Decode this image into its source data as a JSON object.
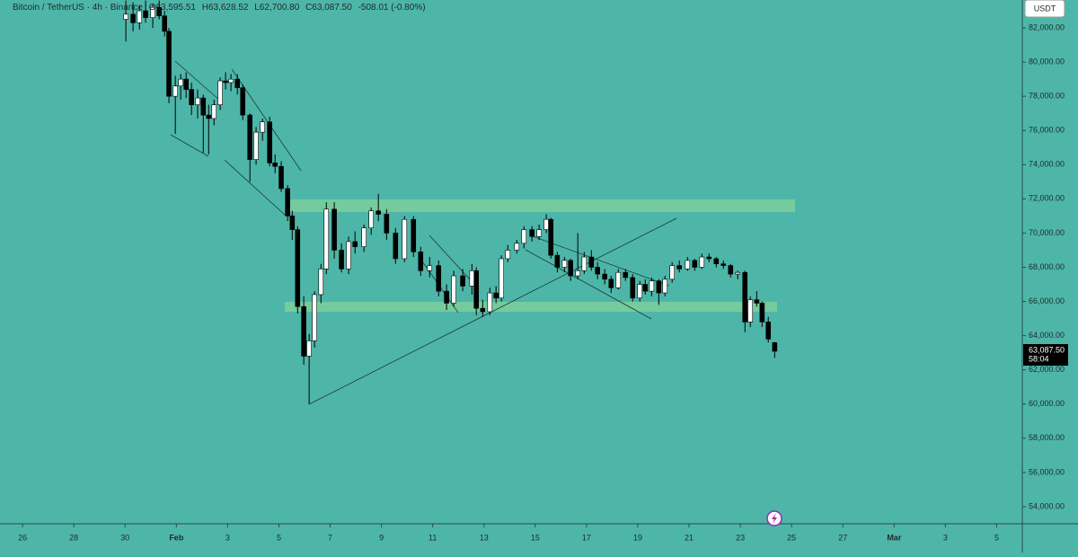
{
  "chart_data": {
    "type": "candlestick",
    "title": "Bitcoin / TetherUS",
    "interval": "4h",
    "exchange": "Binance",
    "ohlc_labels": [
      "O63,595.51",
      "H63,628.52",
      "L62,700.80",
      "C63,087.50",
      "-508.01 (-0.80%)"
    ],
    "currency": "USDT",
    "last_price": {
      "value": 63087.5,
      "label": "63,087.50"
    },
    "countdown": "58:04",
    "up_color": "#ffffff",
    "down_color": "#000000",
    "xlim": [
      -0.88,
      39.0
    ],
    "ylim": [
      53000,
      83630
    ],
    "xticks": [
      {
        "value": 0,
        "label": "26"
      },
      {
        "value": 2,
        "label": "28"
      },
      {
        "value": 4,
        "label": "30"
      },
      {
        "value": 6,
        "label": "Feb"
      },
      {
        "value": 8,
        "label": "3"
      },
      {
        "value": 10,
        "label": "5"
      },
      {
        "value": 12,
        "label": "7"
      },
      {
        "value": 14,
        "label": "9"
      },
      {
        "value": 16,
        "label": "11"
      },
      {
        "value": 18,
        "label": "13"
      },
      {
        "value": 20,
        "label": "15"
      },
      {
        "value": 22,
        "label": "17"
      },
      {
        "value": 24,
        "label": "19"
      },
      {
        "value": 26,
        "label": "21"
      },
      {
        "value": 28,
        "label": "23"
      },
      {
        "value": 30,
        "label": "25"
      },
      {
        "value": 32,
        "label": "27"
      },
      {
        "value": 34,
        "label": "Mar"
      },
      {
        "value": 36,
        "label": "3"
      },
      {
        "value": 38,
        "label": "5"
      }
    ],
    "yticks": [
      {
        "value": 54000,
        "label": "54,000.00"
      },
      {
        "value": 56000,
        "label": "56,000.00"
      },
      {
        "value": 58000,
        "label": "58,000.00"
      },
      {
        "value": 60000,
        "label": "60,000.00"
      },
      {
        "value": 62000,
        "label": "62,000.00"
      },
      {
        "value": 64000,
        "label": "64,000.00"
      },
      {
        "value": 66000,
        "label": "66,000.00"
      },
      {
        "value": 68000,
        "label": "68,000.00"
      },
      {
        "value": 70000,
        "label": "70,000.00"
      },
      {
        "value": 72000,
        "label": "72,000.00"
      },
      {
        "value": 74000,
        "label": "74,000.00"
      },
      {
        "value": 76000,
        "label": "76,000.00"
      },
      {
        "value": 78000,
        "label": "78,000.00"
      },
      {
        "value": 80000,
        "label": "80,000.00"
      },
      {
        "value": 82000,
        "label": "82,000.00"
      }
    ],
    "x": [
      4.03,
      4.31,
      4.56,
      4.8,
      5.08,
      5.33,
      5.54,
      5.71,
      5.96,
      6.17,
      6.38,
      6.59,
      6.83,
      7.05,
      7.26,
      7.47,
      7.71,
      7.92,
      8.13,
      8.38,
      8.59,
      8.87,
      9.11,
      9.36,
      9.64,
      9.85,
      10.09,
      10.34,
      10.52,
      10.73,
      10.97,
      11.18,
      11.39,
      11.64,
      11.85,
      12.16,
      12.44,
      12.72,
      12.97,
      13.32,
      13.6,
      13.88,
      14.2,
      14.55,
      14.9,
      15.25,
      15.53,
      15.88,
      16.23,
      16.54,
      16.82,
      17.17,
      17.53,
      17.7,
      17.95,
      18.23,
      18.47,
      18.68,
      18.93,
      19.28,
      19.56,
      19.87,
      20.15,
      20.43,
      20.61,
      20.86,
      21.14,
      21.38,
      21.66,
      21.91,
      22.19,
      22.43,
      22.71,
      22.96,
      23.24,
      23.52,
      23.8,
      24.08,
      24.29,
      24.54,
      24.82,
      25.06,
      25.34,
      25.62,
      25.94,
      26.22,
      26.5,
      26.78,
      27.06,
      27.34,
      27.62,
      27.9,
      28.18,
      28.39,
      28.64,
      28.85,
      29.09,
      29.34
    ],
    "open": [
      82500,
      82800,
      82300,
      83000,
      82600,
      83200,
      82700,
      81800,
      78000,
      78600,
      79000,
      78400,
      77500,
      77900,
      76900,
      76700,
      77500,
      78900,
      78800,
      79000,
      78500,
      76900,
      74300,
      75900,
      76500,
      74100,
      73900,
      72600,
      71000,
      70200,
      65700,
      62800,
      63700,
      66400,
      67900,
      71400,
      69000,
      67900,
      69500,
      69200,
      70300,
      71300,
      71100,
      70000,
      68500,
      70800,
      68900,
      67800,
      68100,
      66600,
      65900,
      67500,
      66900,
      67800,
      65600,
      65400,
      66500,
      66200,
      68500,
      69000,
      69400,
      70200,
      69800,
      70200,
      70800,
      68700,
      68000,
      68400,
      67500,
      67800,
      68600,
      68000,
      67600,
      67300,
      66800,
      67700,
      67400,
      66200,
      67000,
      66600,
      67200,
      66500,
      67300,
      68100,
      67900,
      68400,
      68000,
      68600,
      68500,
      68200,
      68100,
      67600,
      67700,
      64800,
      66100,
      65900,
      64800,
      63595.51
    ],
    "high": [
      83600,
      83500,
      83300,
      83600,
      83400,
      83600,
      83000,
      82000,
      79200,
      79300,
      79400,
      78800,
      78400,
      78100,
      77500,
      77800,
      79100,
      79400,
      79300,
      79300,
      78700,
      77000,
      76200,
      76700,
      76800,
      74600,
      74200,
      72800,
      71300,
      70400,
      66300,
      64100,
      66600,
      68200,
      71800,
      71800,
      69400,
      69800,
      70100,
      70500,
      71500,
      72300,
      71400,
      70300,
      71000,
      71000,
      69200,
      68600,
      68400,
      67000,
      67800,
      67900,
      68200,
      68000,
      66100,
      66800,
      66900,
      68700,
      69300,
      69600,
      70400,
      70400,
      70500,
      71100,
      70900,
      68900,
      68600,
      68500,
      70000,
      68900,
      69000,
      68300,
      67900,
      67500,
      67900,
      67900,
      67600,
      67200,
      67300,
      67400,
      67300,
      67500,
      68300,
      68400,
      68600,
      68500,
      68800,
      68800,
      68600,
      68400,
      68200,
      67800,
      67800,
      66300,
      66600,
      66000,
      65100,
      63628.52
    ],
    "low": [
      81200,
      81800,
      81900,
      82300,
      82000,
      82500,
      81500,
      77600,
      75800,
      77800,
      77900,
      76900,
      76700,
      74700,
      74600,
      76300,
      77200,
      78400,
      78300,
      78100,
      76600,
      73000,
      74000,
      75400,
      73900,
      73500,
      72400,
      70700,
      69600,
      65300,
      62300,
      60000,
      63300,
      65900,
      67600,
      68500,
      67700,
      67600,
      68800,
      68900,
      69900,
      70700,
      69600,
      68200,
      68300,
      68600,
      67500,
      67400,
      66300,
      65500,
      65700,
      66600,
      66400,
      65200,
      65100,
      65200,
      65900,
      66000,
      68300,
      68800,
      69100,
      69500,
      69600,
      70000,
      68500,
      67700,
      67700,
      67200,
      67300,
      67600,
      67800,
      67300,
      67000,
      66500,
      66700,
      67200,
      66000,
      66000,
      66400,
      66300,
      65800,
      66300,
      67100,
      67700,
      67800,
      67800,
      67900,
      68300,
      68000,
      67900,
      67400,
      67300,
      64200,
      64500,
      65700,
      64500,
      63600,
      62700.8
    ],
    "close": [
      82800,
      82300,
      83000,
      82600,
      83200,
      82700,
      81800,
      78000,
      78600,
      79000,
      78400,
      77500,
      77900,
      76900,
      76700,
      77500,
      78900,
      78800,
      79000,
      78500,
      76900,
      74300,
      75900,
      76500,
      74100,
      73900,
      72600,
      71000,
      70200,
      65700,
      62800,
      63700,
      66400,
      67900,
      71400,
      69000,
      67900,
      69500,
      69200,
      70300,
      71300,
      71100,
      70000,
      68500,
      70800,
      68900,
      67800,
      68100,
      66600,
      65900,
      67500,
      66900,
      67800,
      65600,
      65400,
      66500,
      66200,
      68500,
      69000,
      69400,
      70200,
      69800,
      70200,
      70800,
      68700,
      68000,
      68400,
      67500,
      67800,
      68600,
      68000,
      67600,
      67300,
      66800,
      67700,
      67400,
      66200,
      67000,
      66600,
      67200,
      66500,
      67300,
      68100,
      67900,
      68400,
      68000,
      68600,
      68500,
      68200,
      68100,
      67600,
      67700,
      64800,
      66100,
      65900,
      64800,
      63800,
      63087.5
    ]
  }
}
